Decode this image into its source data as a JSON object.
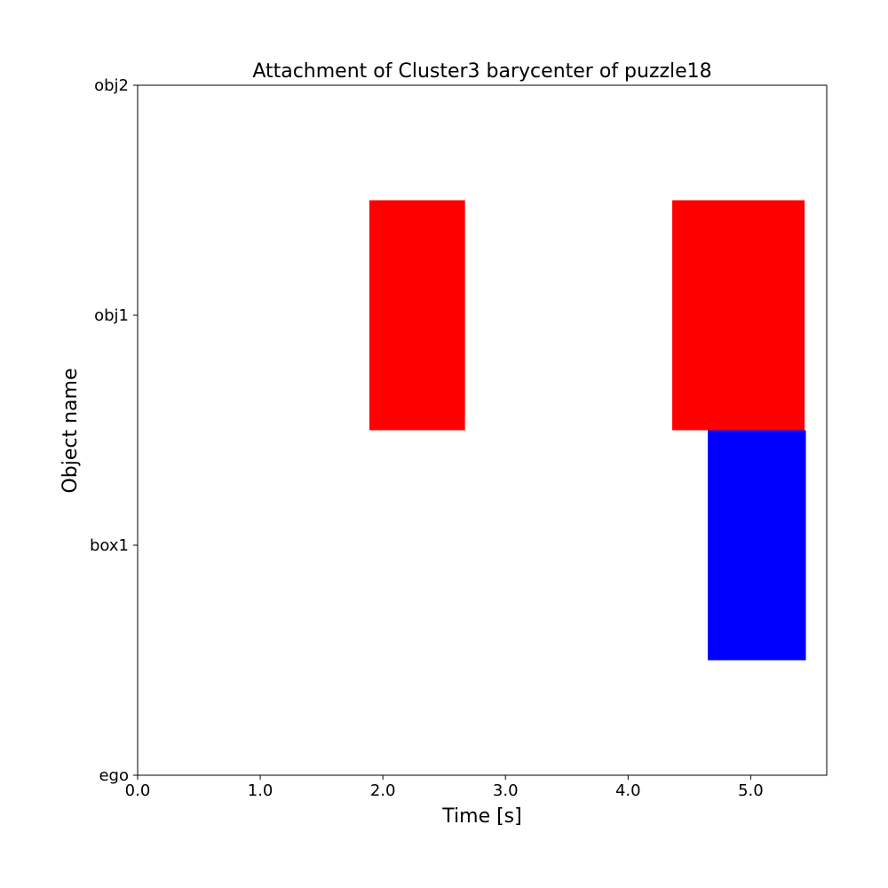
{
  "chart_data": {
    "type": "bar",
    "orientation": "horizontal-interval",
    "title": "Attachment of Cluster3 barycenter of puzzle18",
    "xlabel": "Time [s]",
    "ylabel": "Object name",
    "xlim": [
      0.0,
      5.62
    ],
    "xticks": [
      0.0,
      1.0,
      2.0,
      3.0,
      4.0,
      5.0
    ],
    "xtick_labels": [
      "0.0",
      "1.0",
      "2.0",
      "3.0",
      "4.0",
      "5.0"
    ],
    "ylim": [
      0,
      3
    ],
    "categories": [
      "ego",
      "box1",
      "obj1",
      "obj2"
    ],
    "grid": false,
    "intervals": [
      {
        "start": 1.89,
        "end": 2.67,
        "y_from": 1.5,
        "y_to": 2.5,
        "color": "#ff0000",
        "label": "obj1"
      },
      {
        "start": 4.36,
        "end": 5.44,
        "y_from": 1.5,
        "y_to": 2.5,
        "color": "#ff0000",
        "label": "obj1"
      },
      {
        "start": 4.65,
        "end": 5.45,
        "y_from": 0.5,
        "y_to": 1.5,
        "color": "#0000ff",
        "label": "box1"
      }
    ]
  }
}
